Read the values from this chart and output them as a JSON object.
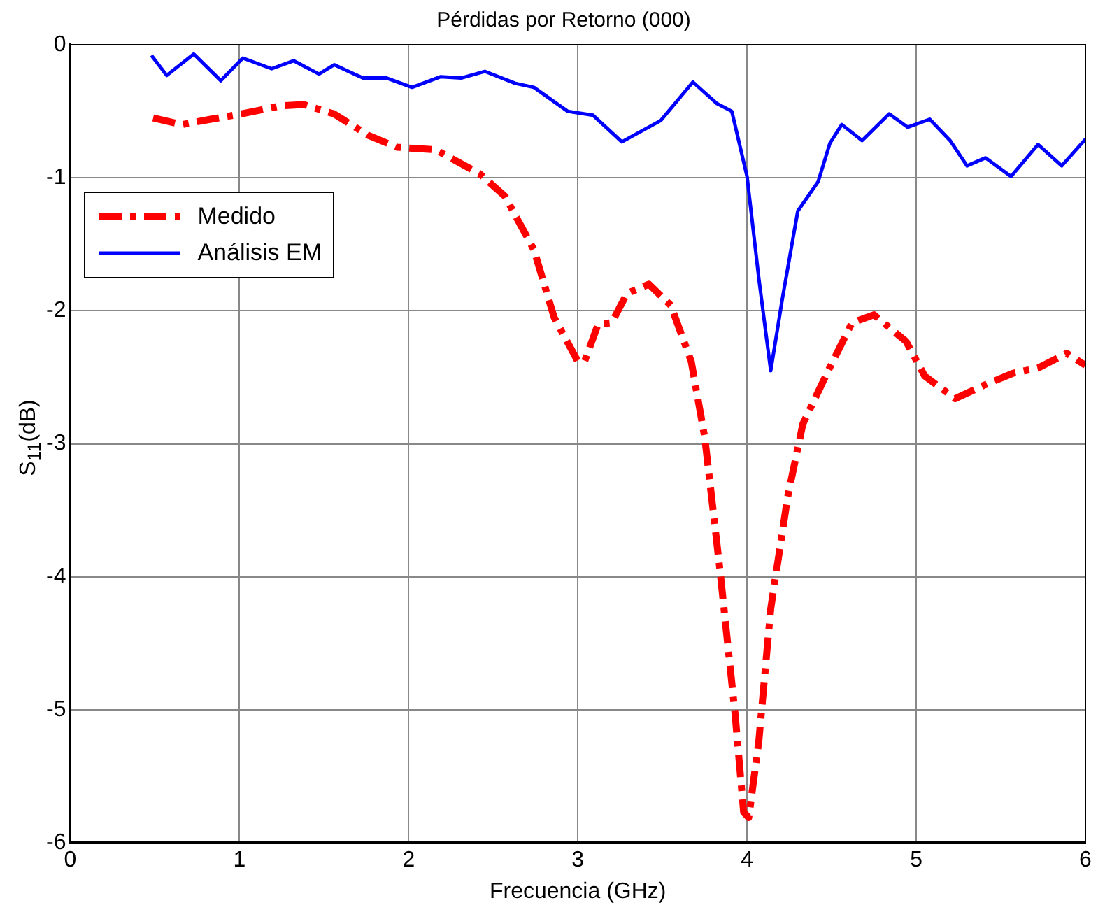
{
  "chart_data": {
    "type": "line",
    "title": "Pérdidas por Retorno (000)",
    "xlabel": "Frecuencia (GHz)",
    "ylabel": "S$_{11}$(dB)",
    "xlim": [
      0,
      6
    ],
    "xticks": [
      0,
      1,
      2,
      3,
      4,
      5,
      6
    ],
    "ylim": [
      -6,
      0
    ],
    "yticks": [
      -6,
      -5,
      -4,
      -3,
      -2,
      -1,
      0
    ],
    "grid": true,
    "legend": "top left",
    "marker": "none",
    "series": [
      {
        "name": "Medido",
        "color": "#ff0000",
        "line_style": "dashdot",
        "x": [
          0.49,
          0.66,
          0.83,
          1.01,
          1.24,
          1.38,
          1.56,
          1.76,
          1.93,
          2.16,
          2.42,
          2.57,
          2.74,
          2.86,
          3.0,
          3.04,
          3.12,
          3.2,
          3.29,
          3.42,
          3.55,
          3.67,
          3.75,
          3.84,
          3.93,
          3.98,
          4.01,
          4.07,
          4.14,
          4.24,
          4.33,
          4.48,
          4.62,
          4.75,
          4.94,
          5.05,
          5.23,
          5.4,
          5.57,
          5.72,
          5.89,
          6.0
        ],
        "values": [
          -0.55,
          -0.6,
          -0.56,
          -0.52,
          -0.46,
          -0.45,
          -0.52,
          -0.68,
          -0.77,
          -0.79,
          -0.97,
          -1.14,
          -1.54,
          -2.05,
          -2.38,
          -2.38,
          -2.1,
          -2.09,
          -1.87,
          -1.8,
          -1.96,
          -2.38,
          -2.95,
          -3.95,
          -5.04,
          -5.77,
          -5.81,
          -5.23,
          -4.24,
          -3.4,
          -2.85,
          -2.45,
          -2.09,
          -2.03,
          -2.23,
          -2.49,
          -2.66,
          -2.56,
          -2.47,
          -2.43,
          -2.32,
          -2.41
        ]
      },
      {
        "name": "Análisis EM",
        "color": "#0000ff",
        "line_style": "solid",
        "x": [
          0.48,
          0.57,
          0.73,
          0.89,
          1.02,
          1.19,
          1.32,
          1.47,
          1.56,
          1.73,
          1.87,
          2.02,
          2.19,
          2.31,
          2.45,
          2.63,
          2.74,
          2.94,
          3.09,
          3.26,
          3.49,
          3.68,
          3.82,
          3.91,
          4.0,
          4.07,
          4.14,
          4.21,
          4.3,
          4.42,
          4.49,
          4.56,
          4.68,
          4.84,
          4.95,
          5.08,
          5.2,
          5.3,
          5.41,
          5.56,
          5.72,
          5.86,
          6.0
        ],
        "values": [
          -0.08,
          -0.23,
          -0.07,
          -0.27,
          -0.1,
          -0.18,
          -0.12,
          -0.22,
          -0.15,
          -0.25,
          -0.25,
          -0.32,
          -0.24,
          -0.25,
          -0.2,
          -0.29,
          -0.32,
          -0.5,
          -0.53,
          -0.73,
          -0.57,
          -0.28,
          -0.44,
          -0.5,
          -0.99,
          -1.76,
          -2.45,
          -1.9,
          -1.25,
          -1.03,
          -0.74,
          -0.6,
          -0.72,
          -0.52,
          -0.62,
          -0.56,
          -0.72,
          -0.91,
          -0.85,
          -0.99,
          -0.75,
          -0.91,
          -0.71
        ]
      }
    ]
  }
}
